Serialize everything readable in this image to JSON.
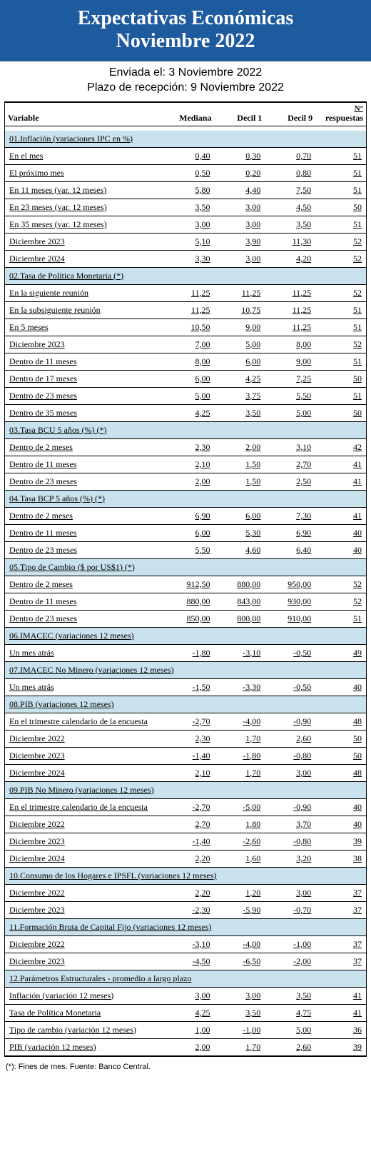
{
  "header": {
    "title_line1": "Expectativas Económicas",
    "title_line2": "Noviembre 2022"
  },
  "meta": {
    "sent_label": "Enviada el: 3 Noviembre 2022",
    "deadline_label": "Plazo de recepción: 9 Noviembre 2022"
  },
  "columns": {
    "variable": "Variable",
    "mediana": "Mediana",
    "decil1": "Decil 1",
    "decil9": "Decil 9",
    "n_top": "N°",
    "n_bottom": "respuestas"
  },
  "sections": [
    {
      "title": "01.Inflación (variaciones IPC en %)",
      "rows": [
        {
          "label": "En el mes",
          "mediana": "0,40",
          "d1": "0,30",
          "d9": "0,70",
          "n": "51"
        },
        {
          "label": "El próximo mes",
          "mediana": "0,50",
          "d1": "0,20",
          "d9": "0,80",
          "n": "51"
        },
        {
          "label": "En 11 meses (var. 12 meses)",
          "mediana": "5,80",
          "d1": "4,40",
          "d9": "7,50",
          "n": "51"
        },
        {
          "label": "En 23 meses (var. 12 meses)",
          "mediana": "3,50",
          "d1": "3,00",
          "d9": "4,50",
          "n": "50"
        },
        {
          "label": "En 35 meses (var. 12 meses)",
          "mediana": "3,00",
          "d1": "3,00",
          "d9": "3,50",
          "n": "51"
        },
        {
          "label": "Diciembre 2023",
          "mediana": "5,10",
          "d1": "3,90",
          "d9": "11,30",
          "n": "52"
        },
        {
          "label": "Diciembre 2024",
          "mediana": "3,30",
          "d1": "3,00",
          "d9": "4,20",
          "n": "52"
        }
      ]
    },
    {
      "title": "02.Tasa de Política Monetaria  (*)",
      "rows": [
        {
          "label": "En la siguiente reunión",
          "mediana": "11,25",
          "d1": "11,25",
          "d9": "11,25",
          "n": "52"
        },
        {
          "label": "En la subsiguiente reunión",
          "mediana": "11,25",
          "d1": "10,75",
          "d9": "11,25",
          "n": "51"
        },
        {
          "label": "En 5 meses",
          "mediana": "10,50",
          "d1": "9,00",
          "d9": "11,25",
          "n": "51"
        },
        {
          "label": "Diciembre 2023",
          "mediana": "7,00",
          "d1": "5,00",
          "d9": "8,00",
          "n": "52"
        },
        {
          "label": "Dentro de 11 meses",
          "mediana": "8,00",
          "d1": "6,00",
          "d9": "9,00",
          "n": "51"
        },
        {
          "label": "Dentro de 17 meses",
          "mediana": "6,00",
          "d1": "4,25",
          "d9": "7,25",
          "n": "50"
        },
        {
          "label": "Dentro de 23 meses",
          "mediana": "5,00",
          "d1": "3,75",
          "d9": "5,50",
          "n": "51"
        },
        {
          "label": "Dentro de 35 meses",
          "mediana": "4,25",
          "d1": "3,50",
          "d9": "5,00",
          "n": "50"
        }
      ]
    },
    {
      "title": "03.Tasa BCU 5 años  (%)  (*)",
      "rows": [
        {
          "label": "Dentro de 2 meses",
          "mediana": "2,30",
          "d1": "2,00",
          "d9": "3,10",
          "n": "42"
        },
        {
          "label": "Dentro de 11 meses",
          "mediana": "2,10",
          "d1": "1,50",
          "d9": "2,70",
          "n": "41"
        },
        {
          "label": "Dentro de 23 meses",
          "mediana": "2,00",
          "d1": "1,50",
          "d9": "2,50",
          "n": "41"
        }
      ]
    },
    {
      "title": "04.Tasa BCP 5 años  (%) (*)",
      "rows": [
        {
          "label": "Dentro de 2 meses",
          "mediana": "6,90",
          "d1": "6,00",
          "d9": "7,30",
          "n": "41"
        },
        {
          "label": "Dentro de 11 meses",
          "mediana": "6,00",
          "d1": "5,30",
          "d9": "6,90",
          "n": "40"
        },
        {
          "label": "Dentro de 23 meses",
          "mediana": "5,50",
          "d1": "4,60",
          "d9": "6,40",
          "n": "40"
        }
      ]
    },
    {
      "title": "05.Tipo de Cambio  ($ por US$1) (*)",
      "rows": [
        {
          "label": "Dentro de 2 meses",
          "mediana": "912,50",
          "d1": "880,00",
          "d9": "950,00",
          "n": "52"
        },
        {
          "label": "Dentro de 11 meses",
          "mediana": "880,00",
          "d1": "843,00",
          "d9": "930,00",
          "n": "52"
        },
        {
          "label": "Dentro de 23 meses",
          "mediana": "850,00",
          "d1": "800,00",
          "d9": "910,00",
          "n": "51"
        }
      ]
    },
    {
      "title": "06.IMACEC  (variaciones 12 meses)",
      "rows": [
        {
          "label": "Un mes atrás",
          "mediana": "-1,80",
          "d1": "-3,10",
          "d9": "-0,50",
          "n": "49"
        }
      ]
    },
    {
      "title": "07.IMACEC No Minero (variaciones 12 meses)",
      "rows": [
        {
          "label": "Un mes atrás",
          "mediana": "-1,50",
          "d1": "-3,30",
          "d9": "-0,50",
          "n": "40"
        }
      ]
    },
    {
      "title": "08.PIB  (variaciones 12 meses)",
      "rows": [
        {
          "label": "En el trimestre calendario de la encuesta",
          "mediana": "-2,70",
          "d1": "-4,00",
          "d9": "-0,90",
          "n": "48"
        },
        {
          "label": "Diciembre 2022",
          "mediana": "2,30",
          "d1": "1,70",
          "d9": "2,60",
          "n": "50"
        },
        {
          "label": "Diciembre 2023",
          "mediana": "-1,40",
          "d1": "-1,80",
          "d9": "-0,80",
          "n": "50"
        },
        {
          "label": "Diciembre 2024",
          "mediana": "2,10",
          "d1": "1,70",
          "d9": "3,00",
          "n": "48"
        }
      ]
    },
    {
      "title": "09.PIB No Minero (variaciones 12 meses)",
      "rows": [
        {
          "label": "En el trimestre calendario de la encuesta",
          "mediana": "-2,70",
          "d1": "-5,00",
          "d9": "-0,90",
          "n": "40"
        },
        {
          "label": "Diciembre 2022",
          "mediana": "2,70",
          "d1": "1,80",
          "d9": "3,70",
          "n": "40"
        },
        {
          "label": "Diciembre 2023",
          "mediana": "-1,40",
          "d1": "-2,60",
          "d9": "-0,80",
          "n": "39"
        },
        {
          "label": "Diciembre 2024",
          "mediana": "2,20",
          "d1": "1,60",
          "d9": "3,20",
          "n": "38"
        }
      ]
    },
    {
      "title": "10.Consumo de los Hogares e IPSFL  (variaciones 12 meses)",
      "rows": [
        {
          "label": "Diciembre 2022",
          "mediana": "2,20",
          "d1": "1,20",
          "d9": "3,00",
          "n": "37"
        },
        {
          "label": "Diciembre 2023",
          "mediana": "-2,30",
          "d1": "-5,90",
          "d9": "-0,70",
          "n": "37"
        }
      ]
    },
    {
      "title": "11.Formación Bruta de Capital Fijo  (variaciones 12 meses)",
      "rows": [
        {
          "label": "Diciembre 2022",
          "mediana": "-3,10",
          "d1": "-4,00",
          "d9": "-1,00",
          "n": "37"
        },
        {
          "label": "Diciembre 2023",
          "mediana": "-4,50",
          "d1": "-6,50",
          "d9": "-2,00",
          "n": "37"
        }
      ]
    },
    {
      "title": "12.Parámetros Estructurales - promedio a largo plazo",
      "rows": [
        {
          "label": "Inflación (variación 12 meses)",
          "mediana": "3,00",
          "d1": "3,00",
          "d9": "3,50",
          "n": "41"
        },
        {
          "label": "Tasa de Política Monetaria",
          "mediana": "4,25",
          "d1": "3,50",
          "d9": "4,75",
          "n": "41"
        },
        {
          "label": "Tipo de cambio (variación 12 meses)",
          "mediana": "1,00",
          "d1": "-1,00",
          "d9": "5,00",
          "n": "36"
        },
        {
          "label": "PIB (variación 12 meses)",
          "mediana": "2,00",
          "d1": "1,70",
          "d9": "2,60",
          "n": "39"
        }
      ]
    }
  ],
  "footnote": "(*): Fines de mes. Fuente: Banco Central.",
  "colors": {
    "banner_bg": "#1e5a9e",
    "banner_text": "#ffffff",
    "section_bg": "#c9e2ed",
    "border": "#000000",
    "text": "#000000"
  }
}
